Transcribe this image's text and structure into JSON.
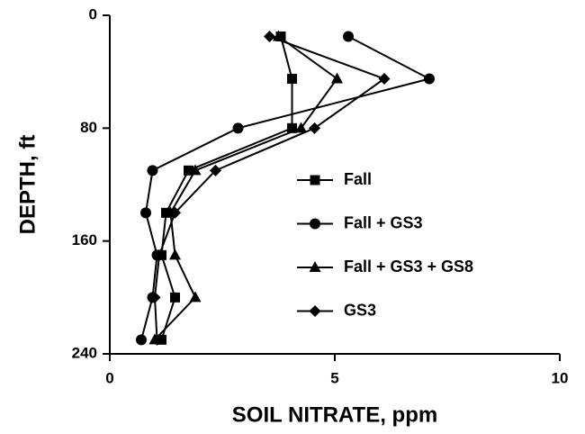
{
  "chart_data": {
    "type": "line",
    "xlabel": "SOIL NITRATE, ppm",
    "ylabel": "DEPTH, ft",
    "y": [
      15,
      45,
      80,
      110,
      140,
      170,
      200,
      230
    ],
    "series": [
      {
        "name": "Fall",
        "color": "#000000",
        "marker": "square",
        "values": [
          3.8,
          4.05,
          4.05,
          1.75,
          1.25,
          1.15,
          1.45,
          1.15
        ]
      },
      {
        "name": "Fall + GS3",
        "color": "#000000",
        "marker": "circle",
        "values": [
          5.3,
          7.1,
          2.85,
          0.95,
          0.8,
          1.05,
          0.95,
          0.7
        ]
      },
      {
        "name": "Fall + GS3 + GS8",
        "color": "#000000",
        "marker": "triangle",
        "values": [
          3.75,
          5.05,
          4.25,
          1.9,
          1.35,
          1.45,
          1.9,
          1.0
        ]
      },
      {
        "name": "GS3",
        "color": "#000000",
        "marker": "diamond",
        "values": [
          3.55,
          6.1,
          4.55,
          2.35,
          1.45,
          1.1,
          1.0,
          1.05
        ]
      }
    ],
    "xlim": [
      0,
      10
    ],
    "xticks": [
      0,
      5,
      10
    ],
    "ylim": [
      0,
      240
    ],
    "yticks": [
      0,
      80,
      160,
      240
    ],
    "y_reversed": true,
    "legend": "center right"
  }
}
